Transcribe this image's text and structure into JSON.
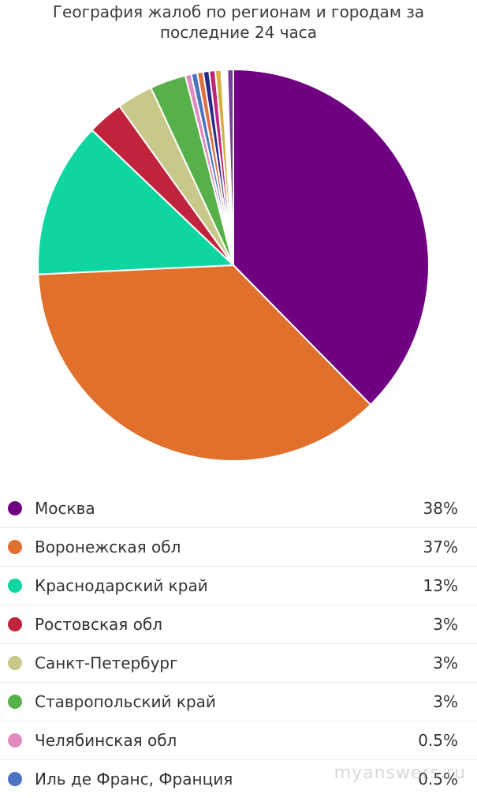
{
  "chart_data": {
    "type": "pie",
    "title_lines": [
      "География жалоб по регионам и городам за",
      "последние 24 часа"
    ],
    "slices": [
      {
        "label": "Москва",
        "value": 38,
        "display": "38%",
        "color": "#6f0082"
      },
      {
        "label": "Воронежская обл",
        "value": 37,
        "display": "37%",
        "color": "#e0702c"
      },
      {
        "label": "Краснодарский край",
        "value": 13,
        "display": "13%",
        "color": "#0fd6a0"
      },
      {
        "label": "Ростовская обл",
        "value": 3,
        "display": "3%",
        "color": "#c0243c"
      },
      {
        "label": "Санкт-Петербург",
        "value": 3,
        "display": "3%",
        "color": "#c8c88a"
      },
      {
        "label": "Ставропольский край",
        "value": 3,
        "display": "3%",
        "color": "#58b04a"
      },
      {
        "label": "Челябинская обл",
        "value": 0.5,
        "display": "0.5%",
        "color": "#e08ac0"
      },
      {
        "label": "Иль де Франс, Франция",
        "value": 0.5,
        "display": "0.5%",
        "color": "#4a74c0"
      },
      {
        "label": "",
        "value": 0.5,
        "display": "",
        "color": "#e07040"
      },
      {
        "label": "",
        "value": 0.5,
        "display": "",
        "color": "#2a2a8a"
      },
      {
        "label": "",
        "value": 0.5,
        "display": "",
        "color": "#c0247a"
      },
      {
        "label": "",
        "value": 0.5,
        "display": "",
        "color": "#d6b040"
      },
      {
        "label": "",
        "value": 0.5,
        "display": "",
        "color": "#ffffff"
      },
      {
        "label": "",
        "value": 0.5,
        "display": "",
        "color": "#7a3aa0"
      }
    ],
    "legend_placement": "bottom"
  },
  "watermark": "myanswers.ru"
}
